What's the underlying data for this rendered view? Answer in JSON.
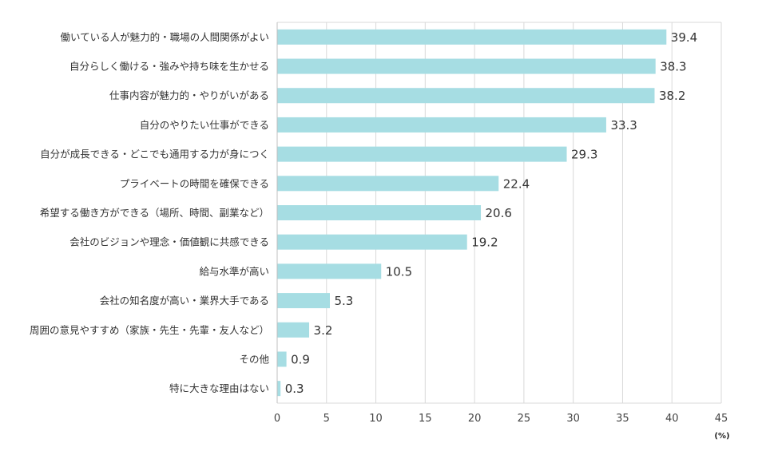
{
  "chart_data": {
    "type": "bar",
    "orientation": "horizontal",
    "categories": [
      "働いている人が魅力的・職場の人間関係がよい",
      "自分らしく働ける・強みや持ち味を生かせる",
      "仕事内容が魅力的・やりがいがある",
      "自分のやりたい仕事ができる",
      "自分が成長できる・どこでも通用する力が身につく",
      "プライベートの時間を確保できる",
      "希望する働き方ができる（場所、時間、副業など）",
      "会社のビジョンや理念・価値観に共感できる",
      "給与水準が高い",
      "会社の知名度が高い・業界大手である",
      "周囲の意見やすすめ（家族・先生・先輩・友人など）",
      "その他",
      "特に大きな理由はない"
    ],
    "values": [
      39.4,
      38.3,
      38.2,
      33.3,
      29.3,
      22.4,
      20.6,
      19.2,
      10.5,
      5.3,
      3.2,
      0.9,
      0.3
    ],
    "value_labels": [
      "39.4",
      "38.3",
      "38.2",
      "33.3",
      "29.3",
      "22.4",
      "20.6",
      "19.2",
      "10.5",
      "5.3",
      "3.2",
      "0.9",
      "0.3"
    ],
    "xlim": [
      0,
      45
    ],
    "xticks": [
      0,
      5,
      10,
      15,
      20,
      25,
      30,
      35,
      40,
      45
    ],
    "xunit": "(%)",
    "grid": true,
    "legend": "none",
    "bar_color": "#a6dde3",
    "grid_color": "#d9d9d9",
    "title": "",
    "xlabel": "",
    "ylabel": ""
  }
}
